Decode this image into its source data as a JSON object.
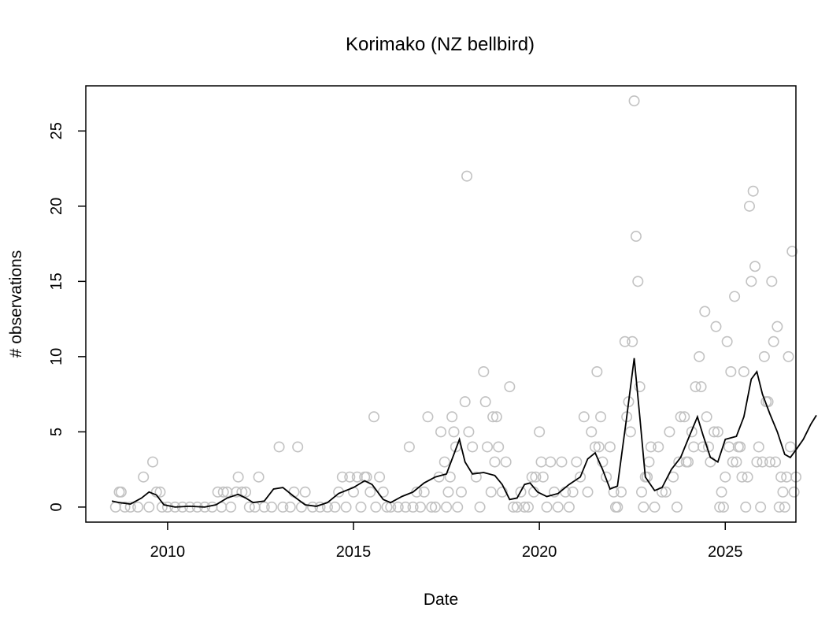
{
  "chart_data": {
    "type": "scatter",
    "title": "Korimako (NZ bellbird)",
    "xlabel": "Date",
    "ylabel": "# observations",
    "xlim": [
      2007.8,
      2026.9
    ],
    "ylim": [
      -1.0,
      28.0
    ],
    "x_ticks": [
      2010,
      2015,
      2020,
      2025
    ],
    "y_ticks": [
      0,
      5,
      10,
      15,
      20,
      25
    ],
    "grid": false,
    "legend": "none",
    "point_color": "#c2c2c2",
    "line_color": "#000000",
    "series": [
      {
        "type": "points",
        "points": [
          [
            2008.6,
            0
          ],
          [
            2008.7,
            1
          ],
          [
            2008.75,
            1
          ],
          [
            2008.85,
            0
          ],
          [
            2009.0,
            0
          ],
          [
            2009.2,
            0
          ],
          [
            2009.35,
            2
          ],
          [
            2009.5,
            0
          ],
          [
            2009.6,
            3
          ],
          [
            2009.7,
            1
          ],
          [
            2009.8,
            1
          ],
          [
            2009.85,
            0
          ],
          [
            2010.0,
            0
          ],
          [
            2010.2,
            0
          ],
          [
            2010.4,
            0
          ],
          [
            2010.6,
            0
          ],
          [
            2010.8,
            0
          ],
          [
            2011.0,
            0
          ],
          [
            2011.2,
            0
          ],
          [
            2011.35,
            1
          ],
          [
            2011.45,
            0
          ],
          [
            2011.5,
            1
          ],
          [
            2011.6,
            1
          ],
          [
            2011.7,
            0
          ],
          [
            2011.85,
            1
          ],
          [
            2011.9,
            2
          ],
          [
            2012.0,
            1
          ],
          [
            2012.1,
            1
          ],
          [
            2012.2,
            0
          ],
          [
            2012.35,
            0
          ],
          [
            2012.45,
            2
          ],
          [
            2012.6,
            0
          ],
          [
            2012.8,
            0
          ],
          [
            2013.0,
            4
          ],
          [
            2013.1,
            0
          ],
          [
            2013.3,
            0
          ],
          [
            2013.4,
            1
          ],
          [
            2013.5,
            4
          ],
          [
            2013.6,
            0
          ],
          [
            2013.7,
            1
          ],
          [
            2013.9,
            0
          ],
          [
            2014.1,
            0
          ],
          [
            2014.3,
            0
          ],
          [
            2014.5,
            0
          ],
          [
            2014.6,
            1
          ],
          [
            2014.7,
            2
          ],
          [
            2014.8,
            0
          ],
          [
            2014.9,
            2
          ],
          [
            2015.0,
            1
          ],
          [
            2015.1,
            2
          ],
          [
            2015.2,
            0
          ],
          [
            2015.3,
            2
          ],
          [
            2015.35,
            2
          ],
          [
            2015.45,
            1
          ],
          [
            2015.55,
            6
          ],
          [
            2015.6,
            0
          ],
          [
            2015.7,
            2
          ],
          [
            2015.8,
            1
          ],
          [
            2015.9,
            0
          ],
          [
            2016.0,
            0
          ],
          [
            2016.2,
            0
          ],
          [
            2016.4,
            0
          ],
          [
            2016.5,
            4
          ],
          [
            2016.6,
            0
          ],
          [
            2016.7,
            1
          ],
          [
            2016.8,
            0
          ],
          [
            2016.9,
            1
          ],
          [
            2017.0,
            6
          ],
          [
            2017.1,
            0
          ],
          [
            2017.2,
            0
          ],
          [
            2017.3,
            2
          ],
          [
            2017.35,
            5
          ],
          [
            2017.45,
            3
          ],
          [
            2017.5,
            0
          ],
          [
            2017.55,
            1
          ],
          [
            2017.6,
            2
          ],
          [
            2017.65,
            6
          ],
          [
            2017.7,
            5
          ],
          [
            2017.75,
            4
          ],
          [
            2017.8,
            0
          ],
          [
            2017.9,
            1
          ],
          [
            2018.0,
            7
          ],
          [
            2018.05,
            22
          ],
          [
            2018.1,
            5
          ],
          [
            2018.2,
            4
          ],
          [
            2018.3,
            2
          ],
          [
            2018.4,
            0
          ],
          [
            2018.5,
            9
          ],
          [
            2018.55,
            7
          ],
          [
            2018.6,
            4
          ],
          [
            2018.7,
            1
          ],
          [
            2018.75,
            6
          ],
          [
            2018.8,
            3
          ],
          [
            2018.85,
            6
          ],
          [
            2018.9,
            4
          ],
          [
            2019.0,
            1
          ],
          [
            2019.1,
            3
          ],
          [
            2019.2,
            8
          ],
          [
            2019.3,
            0
          ],
          [
            2019.4,
            0
          ],
          [
            2019.5,
            1
          ],
          [
            2019.6,
            0
          ],
          [
            2019.7,
            0
          ],
          [
            2019.8,
            2
          ],
          [
            2019.85,
            1
          ],
          [
            2019.9,
            2
          ],
          [
            2020.0,
            5
          ],
          [
            2020.05,
            3
          ],
          [
            2020.1,
            2
          ],
          [
            2020.2,
            0
          ],
          [
            2020.3,
            3
          ],
          [
            2020.4,
            1
          ],
          [
            2020.5,
            0
          ],
          [
            2020.6,
            3
          ],
          [
            2020.7,
            1
          ],
          [
            2020.8,
            0
          ],
          [
            2020.9,
            1
          ],
          [
            2021.0,
            3
          ],
          [
            2021.1,
            2
          ],
          [
            2021.2,
            6
          ],
          [
            2021.3,
            1
          ],
          [
            2021.4,
            5
          ],
          [
            2021.5,
            4
          ],
          [
            2021.55,
            9
          ],
          [
            2021.6,
            4
          ],
          [
            2021.65,
            6
          ],
          [
            2021.7,
            3
          ],
          [
            2021.8,
            2
          ],
          [
            2021.9,
            4
          ],
          [
            2022.0,
            1
          ],
          [
            2022.05,
            0
          ],
          [
            2022.1,
            0
          ],
          [
            2022.2,
            1
          ],
          [
            2022.3,
            11
          ],
          [
            2022.35,
            6
          ],
          [
            2022.4,
            7
          ],
          [
            2022.45,
            5
          ],
          [
            2022.5,
            11
          ],
          [
            2022.55,
            27
          ],
          [
            2022.6,
            18
          ],
          [
            2022.65,
            15
          ],
          [
            2022.7,
            8
          ],
          [
            2022.75,
            1
          ],
          [
            2022.8,
            0
          ],
          [
            2022.85,
            2
          ],
          [
            2022.9,
            2
          ],
          [
            2022.95,
            3
          ],
          [
            2023.0,
            4
          ],
          [
            2023.1,
            0
          ],
          [
            2023.2,
            4
          ],
          [
            2023.3,
            1
          ],
          [
            2023.4,
            1
          ],
          [
            2023.5,
            5
          ],
          [
            2023.6,
            2
          ],
          [
            2023.7,
            0
          ],
          [
            2023.75,
            3
          ],
          [
            2023.8,
            6
          ],
          [
            2023.9,
            6
          ],
          [
            2023.95,
            3
          ],
          [
            2024.0,
            3
          ],
          [
            2024.1,
            5
          ],
          [
            2024.15,
            4
          ],
          [
            2024.2,
            8
          ],
          [
            2024.3,
            10
          ],
          [
            2024.35,
            8
          ],
          [
            2024.4,
            4
          ],
          [
            2024.45,
            13
          ],
          [
            2024.5,
            6
          ],
          [
            2024.55,
            4
          ],
          [
            2024.6,
            3
          ],
          [
            2024.7,
            5
          ],
          [
            2024.75,
            12
          ],
          [
            2024.8,
            5
          ],
          [
            2024.85,
            0
          ],
          [
            2024.9,
            1
          ],
          [
            2024.95,
            0
          ],
          [
            2025.0,
            2
          ],
          [
            2025.05,
            11
          ],
          [
            2025.1,
            4
          ],
          [
            2025.15,
            9
          ],
          [
            2025.2,
            3
          ],
          [
            2025.25,
            14
          ],
          [
            2025.3,
            3
          ],
          [
            2025.35,
            4
          ],
          [
            2025.4,
            4
          ],
          [
            2025.45,
            2
          ],
          [
            2025.5,
            9
          ],
          [
            2025.55,
            0
          ],
          [
            2025.6,
            2
          ],
          [
            2025.65,
            20
          ],
          [
            2025.7,
            15
          ],
          [
            2025.75,
            21
          ],
          [
            2025.8,
            16
          ],
          [
            2025.85,
            3
          ],
          [
            2025.9,
            4
          ],
          [
            2025.95,
            0
          ],
          [
            2026.0,
            3
          ],
          [
            2026.05,
            10
          ],
          [
            2026.1,
            7
          ],
          [
            2026.15,
            7
          ],
          [
            2026.2,
            3
          ],
          [
            2026.25,
            15
          ],
          [
            2026.3,
            11
          ],
          [
            2026.35,
            3
          ],
          [
            2026.4,
            12
          ],
          [
            2026.45,
            0
          ],
          [
            2026.5,
            2
          ],
          [
            2026.55,
            1
          ],
          [
            2026.6,
            0
          ],
          [
            2026.65,
            2
          ],
          [
            2026.7,
            10
          ],
          [
            2026.75,
            4
          ],
          [
            2026.8,
            17
          ],
          [
            2026.85,
            1
          ],
          [
            2026.9,
            2
          ]
        ]
      },
      {
        "type": "line",
        "points": [
          [
            2008.5,
            0.4
          ],
          [
            2008.7,
            0.3
          ],
          [
            2009.0,
            0.2
          ],
          [
            2009.3,
            0.6
          ],
          [
            2009.5,
            1.0
          ],
          [
            2009.7,
            0.8
          ],
          [
            2009.9,
            0.15
          ],
          [
            2010.2,
            0.0
          ],
          [
            2010.6,
            0.05
          ],
          [
            2011.0,
            0.0
          ],
          [
            2011.3,
            0.15
          ],
          [
            2011.6,
            0.6
          ],
          [
            2011.9,
            0.85
          ],
          [
            2012.1,
            0.6
          ],
          [
            2012.3,
            0.3
          ],
          [
            2012.6,
            0.4
          ],
          [
            2012.85,
            1.2
          ],
          [
            2013.1,
            1.3
          ],
          [
            2013.4,
            0.7
          ],
          [
            2013.7,
            0.15
          ],
          [
            2014.0,
            0.05
          ],
          [
            2014.3,
            0.3
          ],
          [
            2014.6,
            0.9
          ],
          [
            2015.0,
            1.3
          ],
          [
            2015.3,
            1.75
          ],
          [
            2015.5,
            1.5
          ],
          [
            2015.8,
            0.5
          ],
          [
            2016.0,
            0.3
          ],
          [
            2016.3,
            0.7
          ],
          [
            2016.6,
            1.0
          ],
          [
            2016.9,
            1.6
          ],
          [
            2017.2,
            2.0
          ],
          [
            2017.5,
            2.2
          ],
          [
            2017.7,
            3.5
          ],
          [
            2017.85,
            4.5
          ],
          [
            2018.0,
            3.0
          ],
          [
            2018.2,
            2.2
          ],
          [
            2018.5,
            2.3
          ],
          [
            2018.8,
            2.1
          ],
          [
            2019.0,
            1.5
          ],
          [
            2019.2,
            0.5
          ],
          [
            2019.4,
            0.6
          ],
          [
            2019.6,
            1.5
          ],
          [
            2019.75,
            1.6
          ],
          [
            2019.95,
            1.0
          ],
          [
            2020.2,
            0.7
          ],
          [
            2020.5,
            0.9
          ],
          [
            2020.8,
            1.5
          ],
          [
            2021.1,
            2.0
          ],
          [
            2021.3,
            3.2
          ],
          [
            2021.5,
            3.6
          ],
          [
            2021.7,
            2.5
          ],
          [
            2021.9,
            1.2
          ],
          [
            2022.1,
            1.4
          ],
          [
            2022.35,
            6.0
          ],
          [
            2022.55,
            9.9
          ],
          [
            2022.7,
            6.0
          ],
          [
            2022.85,
            2.0
          ],
          [
            2023.1,
            1.1
          ],
          [
            2023.3,
            1.3
          ],
          [
            2023.55,
            2.5
          ],
          [
            2023.8,
            3.3
          ],
          [
            2024.0,
            4.5
          ],
          [
            2024.25,
            6.0
          ],
          [
            2024.4,
            4.8
          ],
          [
            2024.6,
            3.3
          ],
          [
            2024.8,
            3.0
          ],
          [
            2025.0,
            4.5
          ],
          [
            2025.3,
            4.7
          ],
          [
            2025.5,
            6.0
          ],
          [
            2025.7,
            8.5
          ],
          [
            2025.85,
            9.0
          ],
          [
            2026.0,
            7.5
          ],
          [
            2026.2,
            6.2
          ],
          [
            2026.4,
            5.0
          ],
          [
            2026.6,
            3.5
          ],
          [
            2026.75,
            3.3
          ],
          [
            2026.9,
            3.8
          ],
          [
            2027.1,
            4.5
          ],
          [
            2027.3,
            5.5
          ],
          [
            2027.45,
            6.1
          ]
        ]
      }
    ]
  }
}
